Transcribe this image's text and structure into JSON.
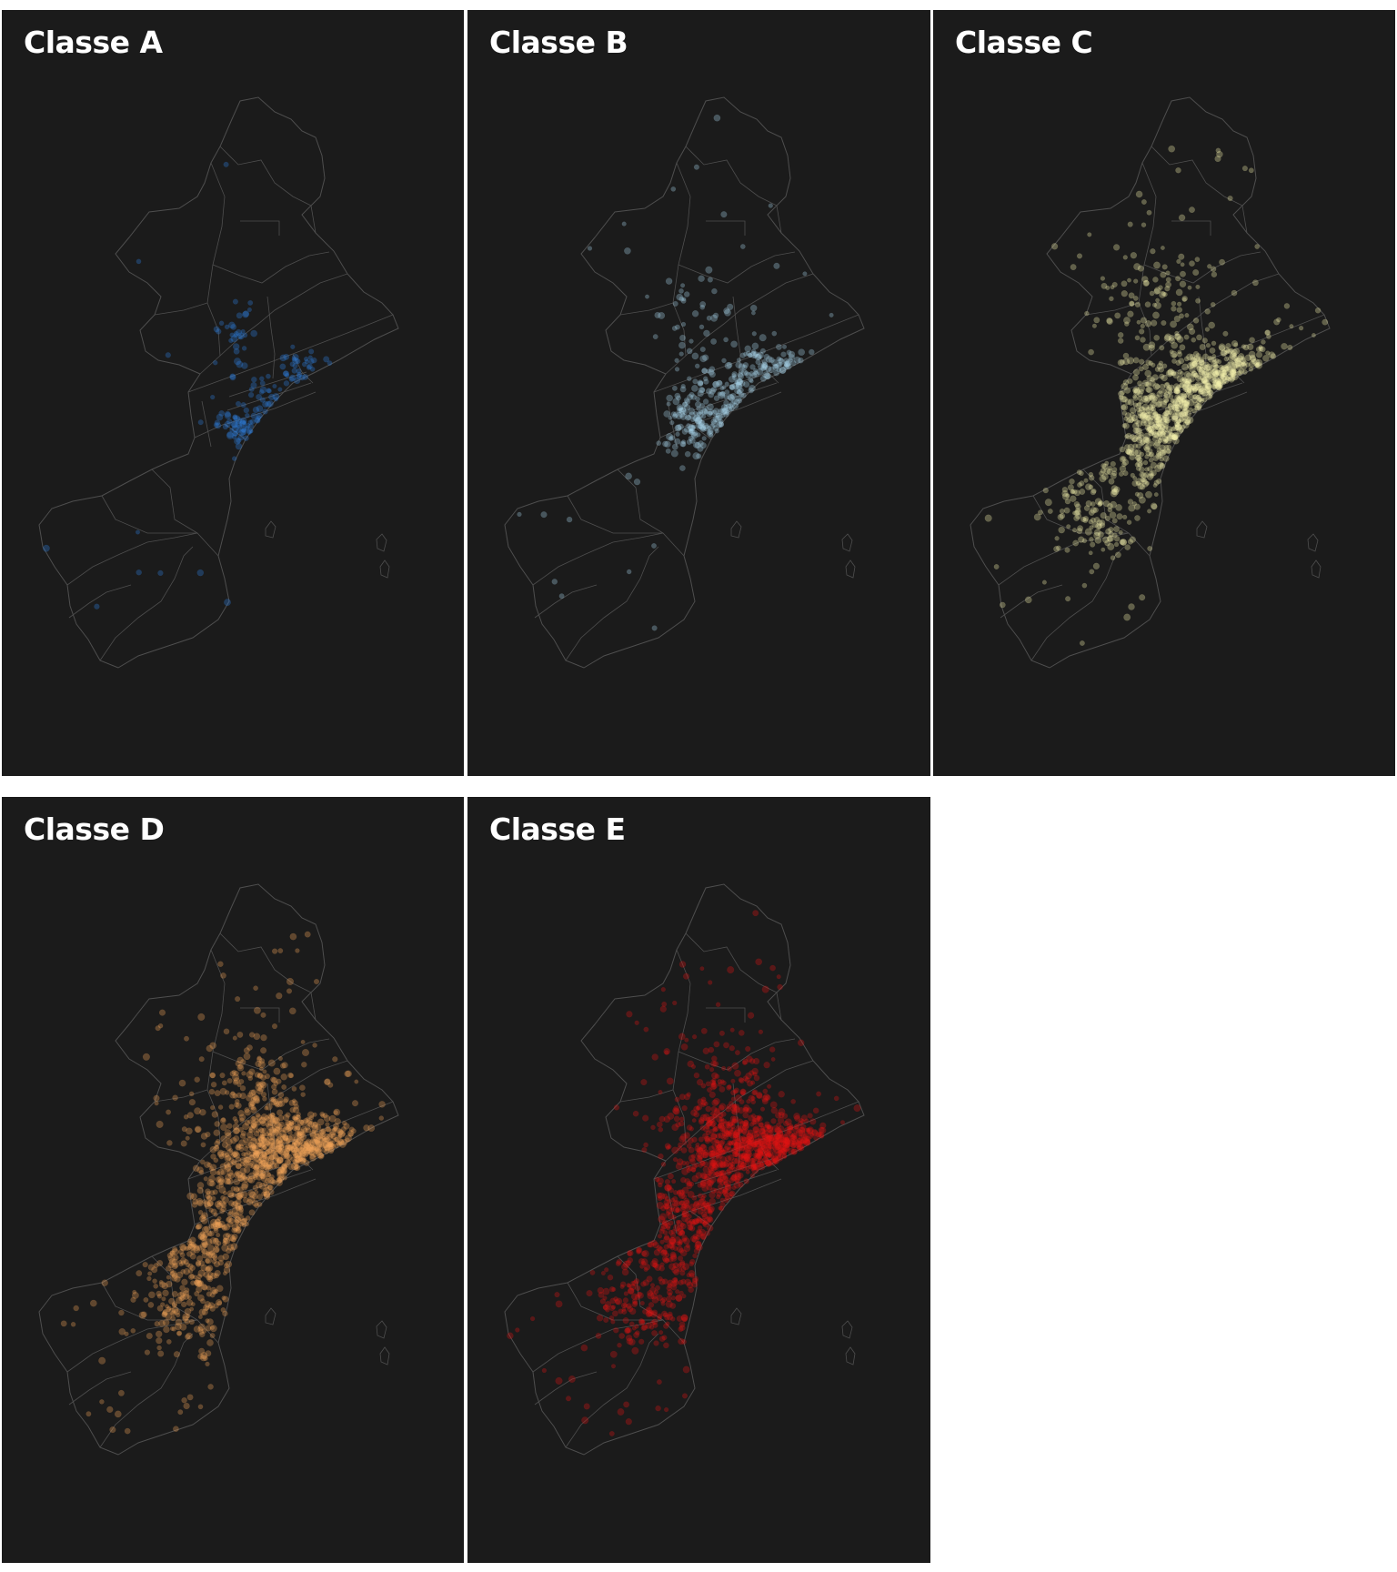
{
  "panels": [
    {
      "id": "a",
      "title": "Classe A",
      "color": "#2f7fe0",
      "density": "low"
    },
    {
      "id": "b",
      "title": "Classe B",
      "color": "#a9d4ea",
      "density": "medium"
    },
    {
      "id": "c",
      "title": "Classe C",
      "color": "#f7f3ad",
      "density": "high"
    },
    {
      "id": "d",
      "title": "Classe D",
      "color": "#f2a55a",
      "density": "very-high"
    },
    {
      "id": "e",
      "title": "Classe E",
      "color": "#e01414",
      "density": "very-high"
    }
  ],
  "style": {
    "background": "#1b1b1b",
    "boundary_color": "#4e4e4e"
  }
}
